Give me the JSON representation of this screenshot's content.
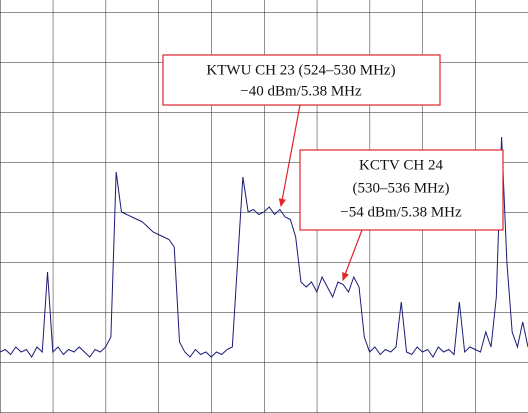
{
  "chart_data": {
    "type": "line",
    "annotations": [
      {
        "lines": [
          "KTWU CH 23 (524–530 MHz)",
          "−40 dBm/5.38 MHz"
        ]
      },
      {
        "lines": [
          "KCTV CH 24",
          "(530–536 MHz)",
          "−54 dBm/5.38 MHz"
        ]
      }
    ],
    "xlim": [
      0,
      10
    ],
    "ylim": [
      0,
      8
    ],
    "grid": true,
    "series": [
      {
        "color": "#1c1c78",
        "x": [
          0,
          0.1,
          0.2,
          0.3,
          0.4,
          0.5,
          0.6,
          0.7,
          0.8,
          0.9,
          1,
          1.1,
          1.2,
          1.3,
          1.4,
          1.5,
          1.6,
          1.7,
          1.8,
          1.9,
          2,
          2.1,
          2.2,
          2.3,
          2.4,
          2.5,
          2.6,
          2.7,
          2.8,
          2.9,
          3,
          3.1,
          3.2,
          3.3,
          3.4,
          3.5,
          3.6,
          3.7,
          3.8,
          3.9,
          4,
          4.1,
          4.2,
          4.3,
          4.4,
          4.5,
          4.6,
          4.7,
          4.8,
          4.9,
          5,
          5.1,
          5.2,
          5.3,
          5.4,
          5.5,
          5.6,
          5.7,
          5.8,
          5.9,
          6,
          6.1,
          6.2,
          6.3,
          6.4,
          6.5,
          6.6,
          6.7,
          6.8,
          6.9,
          7,
          7.1,
          7.2,
          7.3,
          7.4,
          7.5,
          7.6,
          7.7,
          7.8,
          7.9,
          8,
          8.1,
          8.2,
          8.3,
          8.4,
          8.5,
          8.6,
          8.7,
          8.8,
          8.9,
          9,
          9.1,
          9.2,
          9.3,
          9.4,
          9.5,
          9.6,
          9.7,
          9.8,
          9.9,
          10
        ],
        "values": [
          1.2,
          1.25,
          1.15,
          1.3,
          1.2,
          1.25,
          1.1,
          1.3,
          1.2,
          2.8,
          1.2,
          1.3,
          1.15,
          1.25,
          1.2,
          1.3,
          1.2,
          1.1,
          1.25,
          1.2,
          1.3,
          1.5,
          4.8,
          4.0,
          3.95,
          3.9,
          3.85,
          3.8,
          3.7,
          3.6,
          3.55,
          3.5,
          3.45,
          3.3,
          1.4,
          1.2,
          1.1,
          1.25,
          1.15,
          1.2,
          1.1,
          1.2,
          1.15,
          1.25,
          1.3,
          3.0,
          4.7,
          4.0,
          4.05,
          3.95,
          4.0,
          4.1,
          3.95,
          4.05,
          3.9,
          3.85,
          3.5,
          2.6,
          2.5,
          2.6,
          2.4,
          2.7,
          2.5,
          2.3,
          2.6,
          2.55,
          2.4,
          2.7,
          2.5,
          1.5,
          1.2,
          1.3,
          1.15,
          1.25,
          1.2,
          1.3,
          2.2,
          1.2,
          1.15,
          1.3,
          1.2,
          1.25,
          1.1,
          1.3,
          1.2,
          1.25,
          1.15,
          2.2,
          1.2,
          1.3,
          1.25,
          1.2,
          1.6,
          1.3,
          2.3,
          5.5,
          3.0,
          1.6,
          1.3,
          1.8,
          1.3
        ]
      }
    ]
  }
}
